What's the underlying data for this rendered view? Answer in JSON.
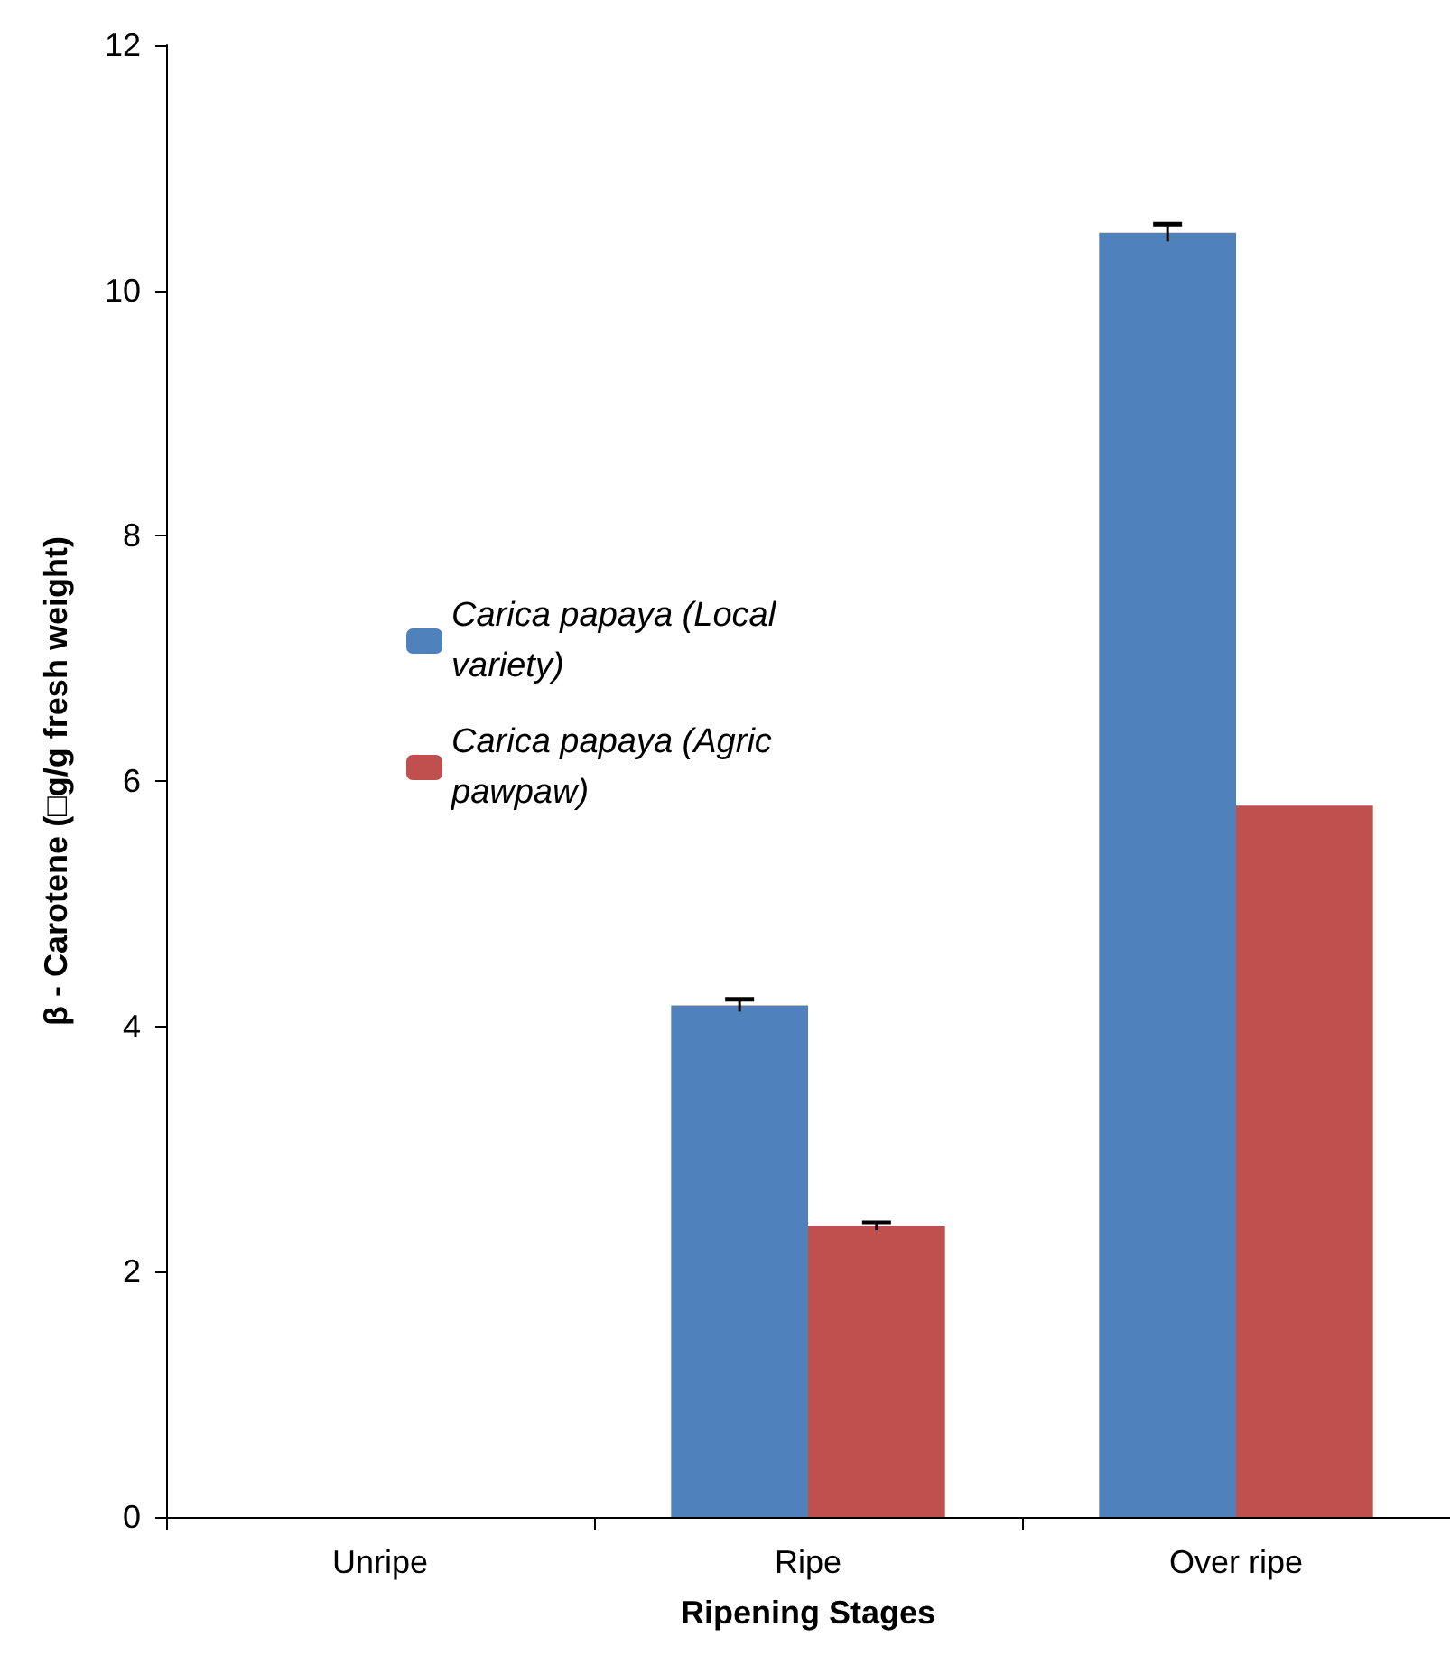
{
  "chart_data": {
    "type": "bar",
    "xlabel": "Ripening Stages",
    "ylabel": "β - Carotene (□g/g fresh weight)",
    "categories": [
      "Unripe",
      "Ripe",
      "Over ripe"
    ],
    "series": [
      {
        "name": "Carica papaya (Local variety)",
        "color": "#4f81bd",
        "values": [
          0,
          4.17,
          10.47
        ],
        "errors": [
          null,
          0.05,
          0.07
        ]
      },
      {
        "name": "Carica papaya (Agric pawpaw)",
        "color": "#c0504d",
        "values": [
          0,
          2.37,
          5.8
        ],
        "errors": [
          null,
          0.03,
          null
        ]
      }
    ],
    "ylim": [
      0,
      12
    ],
    "yticks": [
      0,
      2,
      4,
      6,
      8,
      10,
      12
    ],
    "grid": false,
    "legend": "left"
  }
}
